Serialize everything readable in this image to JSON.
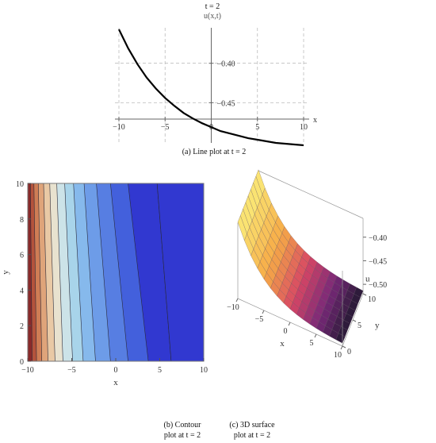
{
  "chart_data": [
    {
      "type": "line",
      "title": "t = 2",
      "ylabel": "u(x,t)",
      "xlabel": "x",
      "caption": "(a) Line plot at t = 2",
      "xlim": [
        -10,
        10
      ],
      "ylim": [
        -0.503,
        -0.355
      ],
      "xticks": [
        -10,
        -5,
        0,
        5,
        10
      ],
      "xtick_labels": [
        "−10",
        "−5",
        "0",
        "5",
        "10"
      ],
      "yticks": [
        -0.4,
        -0.45
      ],
      "ytick_labels": [
        "−0.40",
        "−0.45"
      ],
      "grid": true,
      "x": [
        -10,
        -9,
        -8,
        -7,
        -6,
        -5,
        -4,
        -3,
        -2,
        -1,
        0,
        1,
        2,
        3,
        4,
        5,
        6,
        7,
        8,
        9,
        10
      ],
      "y": [
        -0.357,
        -0.381,
        -0.401,
        -0.418,
        -0.432,
        -0.444,
        -0.454,
        -0.463,
        -0.47,
        -0.476,
        -0.481,
        -0.486,
        -0.489,
        -0.492,
        -0.495,
        -0.497,
        -0.499,
        -0.501,
        -0.502,
        -0.503,
        -0.504
      ]
    },
    {
      "type": "heatmap",
      "xlabel": "x",
      "ylabel": "y",
      "caption_line1": "(b) Contour",
      "caption_line2": "plot at t = 2",
      "xlim": [
        -10,
        10
      ],
      "ylim": [
        0,
        10
      ],
      "xticks": [
        -10,
        -5,
        0,
        5,
        10
      ],
      "xtick_labels": [
        "−10",
        "−5",
        "0",
        "5",
        "10"
      ],
      "yticks": [
        0,
        2,
        4,
        6,
        8,
        10
      ],
      "ytick_labels": [
        "0",
        "2",
        "4",
        "6",
        "8",
        "10"
      ],
      "bands": [
        {
          "x_top": -10.0,
          "x_bottom": -10.0,
          "color": "#5a0d1e"
        },
        {
          "x_top": -9.7,
          "x_bottom": -9.5,
          "color": "#8a2a2a"
        },
        {
          "x_top": -9.3,
          "x_bottom": -9.0,
          "color": "#b4533c"
        },
        {
          "x_top": -8.8,
          "x_bottom": -8.4,
          "color": "#cf7d55"
        },
        {
          "x_top": -8.2,
          "x_bottom": -7.7,
          "color": "#dfa47a"
        },
        {
          "x_top": -7.5,
          "x_bottom": -6.9,
          "color": "#e9c9a5"
        },
        {
          "x_top": -6.7,
          "x_bottom": -6.0,
          "color": "#e8e2cf"
        },
        {
          "x_top": -5.8,
          "x_bottom": -4.9,
          "color": "#cce3e8"
        },
        {
          "x_top": -4.8,
          "x_bottom": -3.7,
          "color": "#a8d4ea"
        },
        {
          "x_top": -3.6,
          "x_bottom": -2.3,
          "color": "#86b9ec"
        },
        {
          "x_top": -2.2,
          "x_bottom": -0.6,
          "color": "#6d9ce8"
        },
        {
          "x_top": -0.6,
          "x_bottom": 1.4,
          "color": "#577ee2"
        },
        {
          "x_top": 1.4,
          "x_bottom": 3.7,
          "color": "#4360dc"
        },
        {
          "x_top": 4.7,
          "x_bottom": 6.3,
          "color": "#3138d0"
        }
      ]
    },
    {
      "type": "surface",
      "xlabel": "x",
      "ylabel": "y",
      "zlabel": "u",
      "caption_line1": "(c) 3D surface",
      "caption_line2": "plot at t = 2",
      "xlim": [
        -10,
        10
      ],
      "ylim": [
        0,
        10
      ],
      "zlim": [
        -0.52,
        -0.36
      ],
      "xticks": [
        -10,
        -5,
        0,
        5,
        10
      ],
      "xtick_labels": [
        "−10",
        "−5",
        "0",
        "5",
        "10"
      ],
      "yticks": [
        0,
        5,
        10
      ],
      "ytick_labels": [
        "0",
        "5",
        "10"
      ],
      "zticks": [
        -0.4,
        -0.45,
        -0.5
      ],
      "ztick_labels": [
        "−0.40",
        "−0.45",
        "−0.50"
      ]
    }
  ]
}
